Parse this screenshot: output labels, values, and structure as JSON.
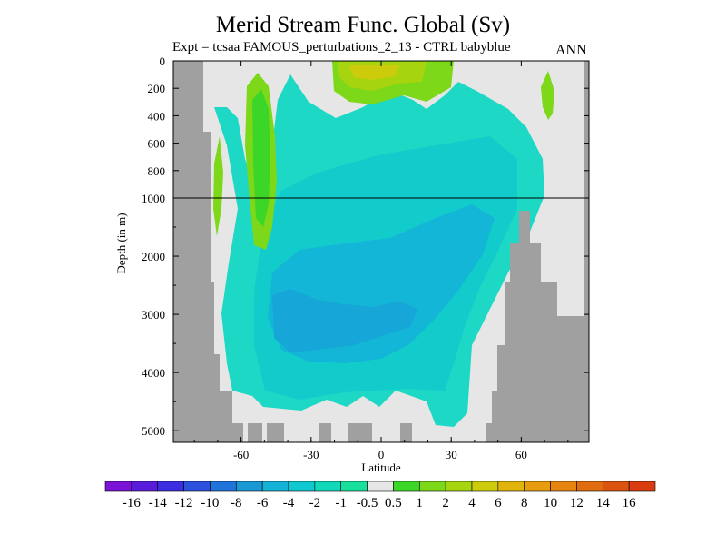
{
  "chart_data": {
    "type": "contour",
    "title": "Merid Stream Func. Global (Sv)",
    "subtitle": "Expt = tcsaa FAMOUS_perturbations_2_13 - CTRL babyblue",
    "season": "ANN",
    "xlabel": "Latitude",
    "ylabel": "Depth (in m)",
    "xticks": [
      "-60",
      "-30",
      "0",
      "30",
      "60"
    ],
    "xtick_values": [
      -60,
      -30,
      0,
      30,
      60
    ],
    "xlim": [
      -89,
      89
    ],
    "yticks_upper": [
      "0",
      "200",
      "400",
      "600",
      "800",
      "1000"
    ],
    "yticks_upper_values": [
      0,
      200,
      400,
      600,
      800,
      1000
    ],
    "yticks_lower": [
      "2000",
      "3000",
      "4000",
      "5000"
    ],
    "yticks_lower_values": [
      2000,
      3000,
      4000,
      5000
    ],
    "ylim": [
      0,
      5200
    ],
    "y_scale_break_at": 1000,
    "colorbar": {
      "labels": [
        "-16",
        "-14",
        "-12",
        "-10",
        "-8",
        "-6",
        "-4",
        "-2",
        "-1",
        "-0.5",
        "0.5",
        "1",
        "2",
        "4",
        "6",
        "8",
        "10",
        "12",
        "14",
        "16"
      ],
      "colors": [
        "#7a13d6",
        "#5a1cdb",
        "#3a2ee0",
        "#2a50dc",
        "#1e74d8",
        "#1a98d4",
        "#14b2d4",
        "#10c8d0",
        "#10d8b8",
        "#18e09c",
        "#e6e6e6",
        "#3cd628",
        "#7cd818",
        "#a6d40e",
        "#cccc0c",
        "#e0b40c",
        "#e69c0e",
        "#e68410",
        "#e06c10",
        "#da5410",
        "#d83c10"
      ]
    },
    "fields": [
      {
        "name": "negative-cell",
        "value_range": [
          -8,
          -0.5
        ]
      },
      {
        "name": "positive-cells",
        "value_range": [
          0.5,
          6
        ]
      }
    ]
  }
}
